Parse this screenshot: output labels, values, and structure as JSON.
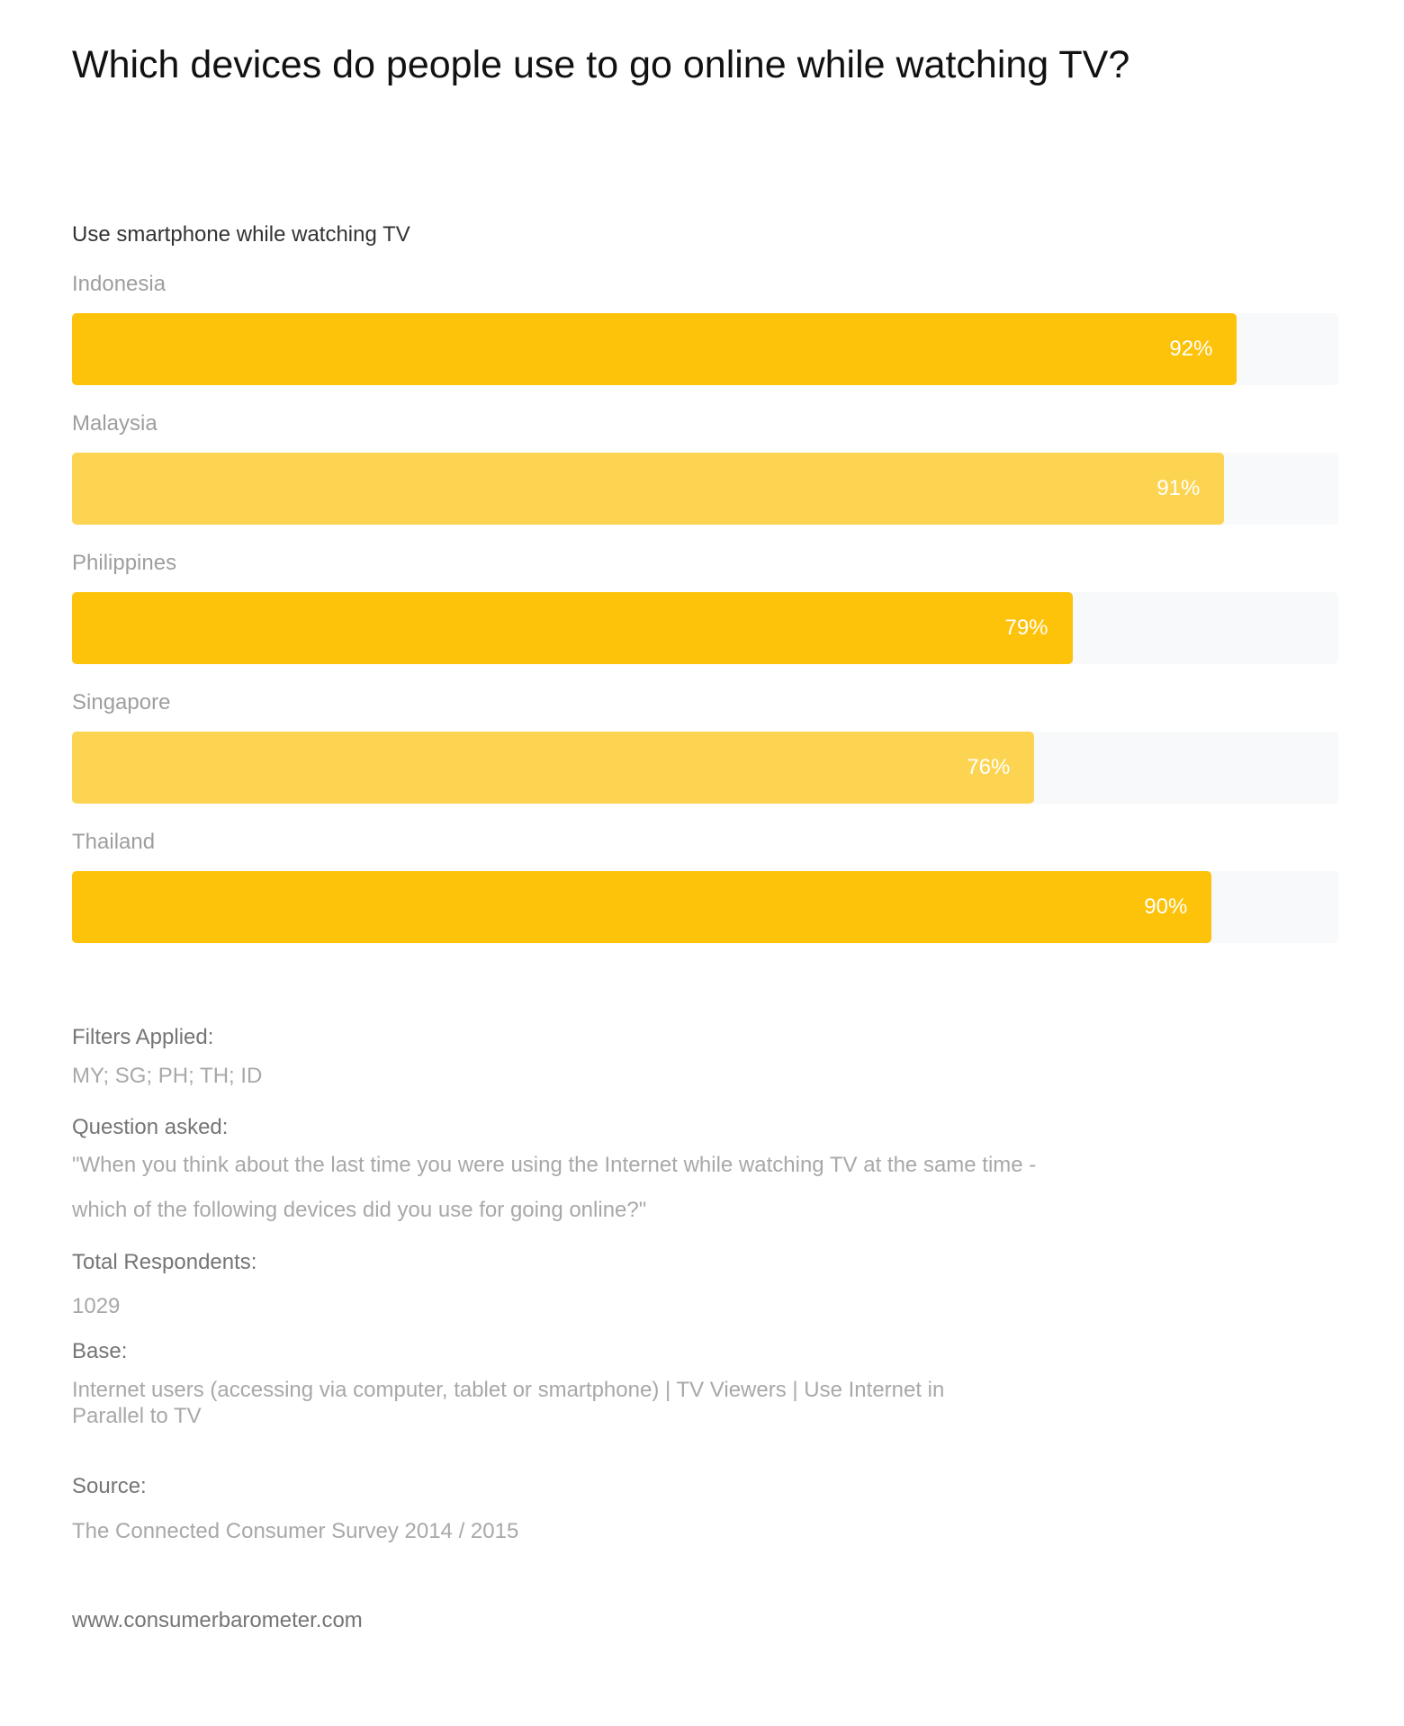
{
  "chart_data": {
    "type": "bar",
    "orientation": "horizontal",
    "title": "Which devices do people use to go online while watching TV?",
    "subtitle": "Use smartphone while watching TV",
    "categories": [
      "Indonesia",
      "Malaysia",
      "Philippines",
      "Singapore",
      "Thailand"
    ],
    "values": [
      92,
      91,
      79,
      76,
      90
    ],
    "value_labels": [
      "92%",
      "91%",
      "79%",
      "76%",
      "90%"
    ],
    "xlim": [
      0,
      100
    ],
    "colors": [
      "#fdc20a",
      "#fdd451",
      "#fdc20a",
      "#fdd451",
      "#fdc20a"
    ],
    "track_color": "#f8f9fa"
  },
  "footer": {
    "filters_label": "Filters Applied:",
    "filters_value": "MY; SG; PH; TH; ID",
    "question_label": "Question asked:",
    "question_line1": "\"When you think about the last time you were using the Internet while watching TV at the same time -",
    "question_line2": "which of the following devices did you use for going online?\"",
    "respondents_label": "Total Respondents:",
    "respondents_value": "1029",
    "base_label": "Base:",
    "base_line1": "Internet users (accessing via computer, tablet or smartphone) | TV Viewers | Use Internet in",
    "base_line2": "Parallel to TV",
    "source_label": "Source:",
    "source_value": "The Connected Consumer Survey 2014 / 2015",
    "website": "www.consumerbarometer.com"
  }
}
